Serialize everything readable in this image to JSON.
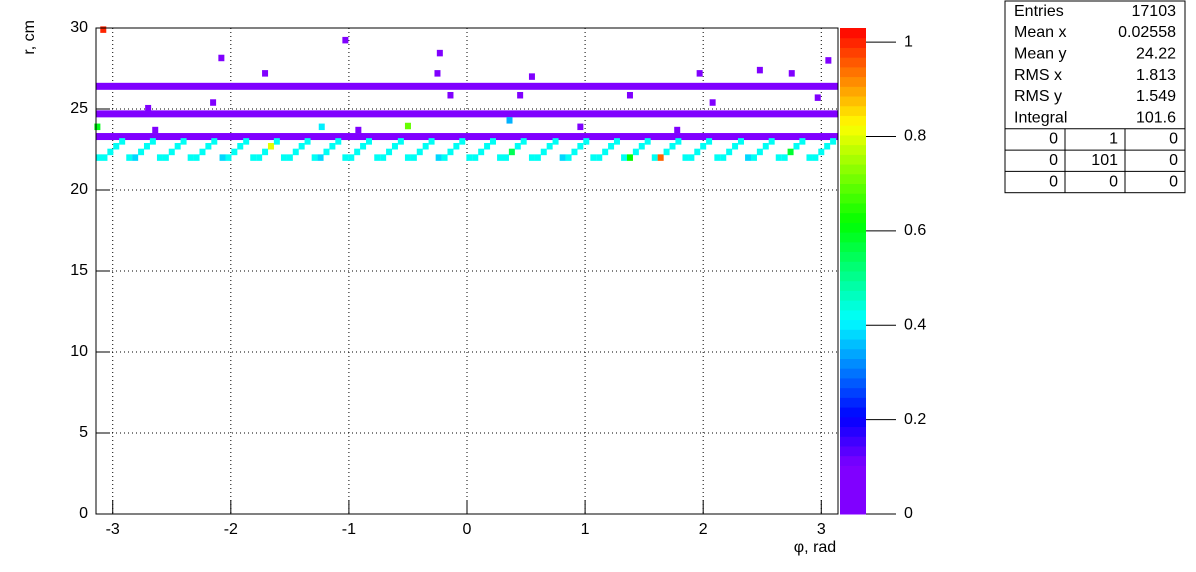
{
  "chart_data": {
    "type": "heatmap",
    "palette": "rainbow",
    "x_label": "φ, rad",
    "y_label": "r, cm",
    "xlim": [
      -3.1416,
      3.1416
    ],
    "ylim": [
      0,
      30
    ],
    "zlim": [
      0,
      1.03
    ],
    "xticks": [
      -3,
      -2,
      -1,
      0,
      1,
      2,
      3
    ],
    "yticks": [
      0,
      5,
      10,
      15,
      20,
      25,
      30
    ],
    "zticks": [
      0,
      0.2,
      0.4,
      0.6,
      0.8,
      1
    ],
    "grid": true,
    "bands": {
      "y": [
        26.4,
        24.7,
        23.3
      ],
      "values": [
        0.02,
        0.02,
        0.02
      ]
    },
    "rows": [
      {
        "y": 22.0,
        "x": [
          -3.12,
          -3.07,
          -2.86,
          -2.81,
          -2.6,
          -2.55,
          -2.34,
          -2.29,
          -2.07,
          -2.02,
          -1.81,
          -1.76,
          -1.55,
          -1.5,
          -1.29,
          -1.24,
          -1.03,
          -0.98,
          -0.76,
          -0.71,
          -0.5,
          -0.45,
          -0.24,
          -0.19,
          0.02,
          0.07,
          0.28,
          0.33,
          0.55,
          0.6,
          0.81,
          0.86,
          1.07,
          1.12,
          1.33,
          1.38,
          1.59,
          1.64,
          1.85,
          1.9,
          2.12,
          2.17,
          2.38,
          2.43,
          2.64,
          2.69,
          2.9,
          2.95
        ],
        "values": [
          0.42,
          0.42,
          0.42,
          0.38,
          0.42,
          0.42,
          0.42,
          0.42,
          0.38,
          0.42,
          0.42,
          0.42,
          0.42,
          0.42,
          0.42,
          0.38,
          0.42,
          0.42,
          0.42,
          0.42,
          0.42,
          0.42,
          0.38,
          0.42,
          0.42,
          0.42,
          0.42,
          0.42,
          0.42,
          0.42,
          0.38,
          0.42,
          0.42,
          0.42,
          0.42,
          0.62,
          0.42,
          0.95,
          0.42,
          0.42,
          0.42,
          0.42,
          0.38,
          0.42,
          0.42,
          0.42,
          0.42,
          0.42
        ]
      },
      {
        "y": 22.35,
        "x": [
          -3.02,
          -2.76,
          -2.5,
          -2.24,
          -1.97,
          -1.71,
          -1.45,
          -1.19,
          -0.93,
          -0.66,
          -0.4,
          -0.14,
          0.12,
          0.38,
          0.65,
          0.91,
          1.17,
          1.43,
          1.69,
          1.95,
          2.22,
          2.48,
          2.74,
          3.0
        ],
        "values": [
          0.42,
          0.42,
          0.42,
          0.42,
          0.42,
          0.42,
          0.42,
          0.42,
          0.42,
          0.42,
          0.42,
          0.42,
          0.42,
          0.55,
          0.42,
          0.42,
          0.42,
          0.42,
          0.42,
          0.42,
          0.42,
          0.42,
          0.58,
          0.42
        ]
      },
      {
        "y": 22.7,
        "x": [
          -2.97,
          -2.71,
          -2.45,
          -2.19,
          -1.92,
          -1.66,
          -1.4,
          -1.14,
          -0.88,
          -0.61,
          -0.35,
          -0.09,
          0.17,
          0.43,
          0.7,
          0.96,
          1.22,
          1.48,
          1.74,
          2.0,
          2.27,
          2.53,
          2.79,
          3.05
        ],
        "values": [
          0.42,
          0.42,
          0.42,
          0.42,
          0.42,
          0.8,
          0.42,
          0.42,
          0.42,
          0.42,
          0.42,
          0.42,
          0.42,
          0.42,
          0.42,
          0.42,
          0.42,
          0.42,
          0.42,
          0.42,
          0.42,
          0.42,
          0.42,
          0.42
        ]
      },
      {
        "y": 23.0,
        "x": [
          -2.92,
          -2.66,
          -2.4,
          -2.14,
          -1.87,
          -1.61,
          -1.35,
          -1.09,
          -0.83,
          -0.56,
          -0.3,
          -0.04,
          0.22,
          0.48,
          0.75,
          1.01,
          1.27,
          1.53,
          1.79,
          2.05,
          2.32,
          2.58,
          2.84,
          3.1
        ],
        "values": [
          0.42,
          0.42,
          0.42,
          0.42,
          0.42,
          0.42,
          0.42,
          0.42,
          0.42,
          0.42,
          0.42,
          0.42,
          0.42,
          0.42,
          0.42,
          0.42,
          0.42,
          0.42,
          0.42,
          0.42,
          0.42,
          0.42,
          0.42,
          0.42
        ]
      }
    ],
    "cells": {
      "x": [
        -3.08,
        -1.03,
        -2.08,
        -0.23,
        -1.71,
        -0.25,
        -0.14,
        0.45,
        2.97,
        -2.7,
        -2.15,
        2.08,
        1.38,
        -1.23,
        -0.5,
        0.36,
        -3.13,
        2.48,
        2.75,
        3.06,
        1.97,
        0.55,
        0.96,
        1.78,
        -2.64,
        -0.92
      ],
      "y": [
        29.9,
        29.25,
        28.15,
        28.45,
        27.2,
        27.2,
        25.85,
        25.85,
        25.7,
        25.05,
        25.4,
        25.4,
        25.85,
        23.9,
        23.95,
        24.3,
        23.9,
        27.4,
        27.2,
        28.0,
        27.2,
        27.0,
        23.9,
        23.7,
        23.7,
        23.7
      ],
      "values": [
        1.0,
        0.02,
        0.02,
        0.02,
        0.02,
        0.02,
        0.02,
        0.02,
        0.02,
        0.02,
        0.02,
        0.02,
        0.02,
        0.4,
        0.7,
        0.35,
        0.6,
        0.02,
        0.02,
        0.02,
        0.02,
        0.02,
        0.02,
        0.02,
        0.02,
        0.02
      ]
    }
  },
  "stats": {
    "rows": [
      {
        "label": "Entries",
        "value": 17103
      },
      {
        "label": "Mean x",
        "value": 0.02558
      },
      {
        "label": "Mean y",
        "value": 24.22
      },
      {
        "label": "RMS x",
        "value": 1.813
      },
      {
        "label": "RMS y",
        "value": 1.549
      },
      {
        "label": "Integral",
        "value": 101.6
      }
    ],
    "table": [
      [
        0,
        1,
        0
      ],
      [
        0,
        101,
        0
      ],
      [
        0,
        0,
        0
      ]
    ]
  }
}
